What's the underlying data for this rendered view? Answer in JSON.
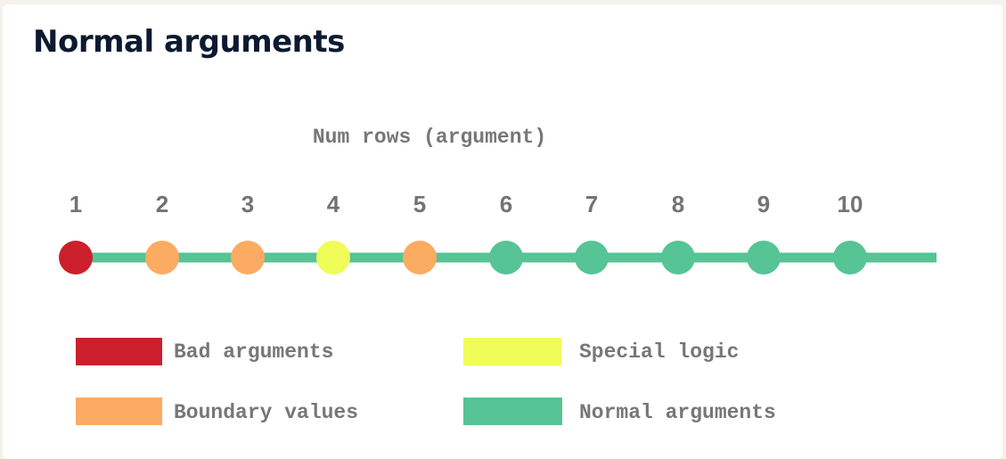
{
  "title": "Normal arguments",
  "axis_label": "Num rows (argument)",
  "points": [
    {
      "label": "1",
      "category": "bad"
    },
    {
      "label": "2",
      "category": "boundary"
    },
    {
      "label": "3",
      "category": "boundary"
    },
    {
      "label": "4",
      "category": "special"
    },
    {
      "label": "5",
      "category": "boundary"
    },
    {
      "label": "6",
      "category": "normal"
    },
    {
      "label": "7",
      "category": "normal"
    },
    {
      "label": "8",
      "category": "normal"
    },
    {
      "label": "9",
      "category": "normal"
    },
    {
      "label": "10",
      "category": "normal"
    }
  ],
  "colors": {
    "bad": "#cc1f2c",
    "boundary": "#fbab62",
    "special": "#f0fc58",
    "normal": "#56c495",
    "line": "#56c495"
  },
  "legend": {
    "bad": "Bad arguments",
    "special": "Special logic",
    "boundary": "Boundary values",
    "normal": "Normal arguments"
  }
}
